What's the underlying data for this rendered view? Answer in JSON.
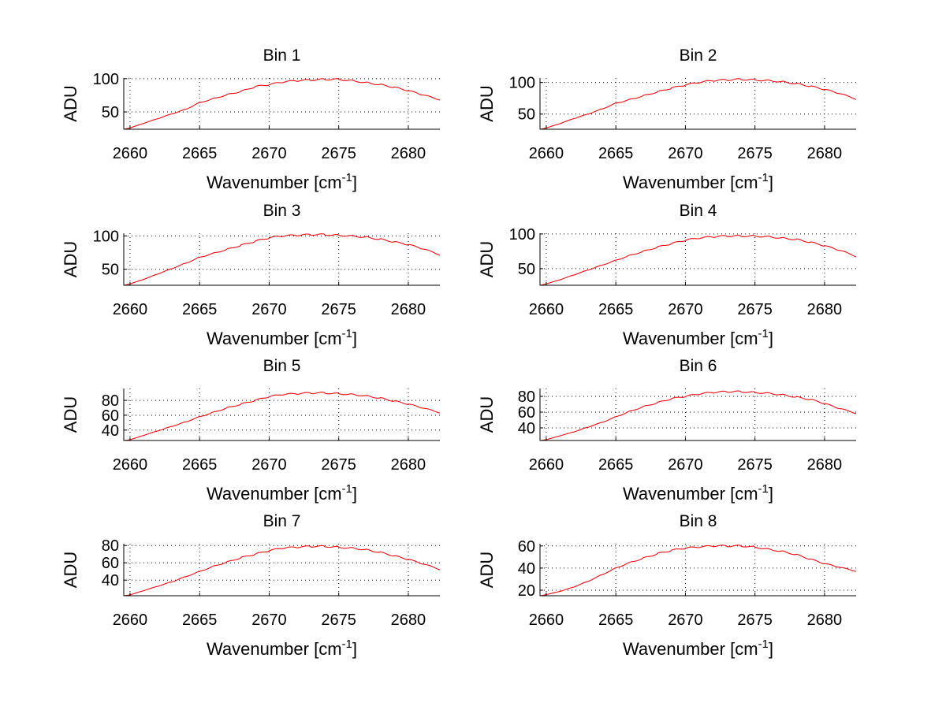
{
  "chart_data": {
    "type": "line",
    "layout": "4x2 subplots",
    "xlabel": {
      "main": "Wavenumber [cm",
      "sup": "-1",
      "close": "]"
    },
    "ylabel": "ADU",
    "xlim": [
      2659.55,
      2682.27
    ],
    "xticks": [
      2660,
      2665,
      2670,
      2675,
      2680
    ],
    "grid": true,
    "line_color": "#ff0000",
    "x": [
      2659.6,
      2660,
      2661,
      2662,
      2663,
      2664,
      2665,
      2666,
      2667,
      2668,
      2669,
      2670,
      2671,
      2672,
      2673,
      2674,
      2675,
      2676,
      2677,
      2678,
      2679,
      2680,
      2681,
      2682,
      2682.27
    ],
    "panels": [
      {
        "title": "Bin 1",
        "ylim": [
          24,
          101
        ],
        "yticks": [
          50,
          100
        ],
        "y": [
          24,
          26,
          33,
          40,
          47,
          54,
          64,
          70,
          76,
          81,
          88,
          91,
          95,
          97,
          98,
          99,
          99,
          97,
          94,
          91,
          87,
          82,
          76,
          70,
          68
        ]
      },
      {
        "title": "Bin 2",
        "ylim": [
          26,
          107
        ],
        "yticks": [
          50,
          100
        ],
        "y": [
          26,
          28,
          35,
          43,
          50,
          58,
          67,
          73,
          79,
          85,
          91,
          96,
          100,
          103,
          104,
          105,
          104,
          103,
          101,
          98,
          94,
          89,
          83,
          76,
          73
        ]
      },
      {
        "title": "Bin 3",
        "ylim": [
          26,
          104
        ],
        "yticks": [
          50,
          100
        ],
        "y": [
          26,
          28,
          35,
          43,
          51,
          59,
          68,
          74,
          80,
          86,
          92,
          97,
          100,
          101,
          102,
          102,
          101,
          100,
          98,
          95,
          91,
          87,
          81,
          74,
          71
        ]
      },
      {
        "title": "Bin 4",
        "ylim": [
          26,
          101
        ],
        "yticks": [
          50,
          100
        ],
        "y": [
          26,
          28,
          34,
          41,
          48,
          55,
          62,
          69,
          75,
          81,
          86,
          91,
          94,
          96,
          97,
          97,
          97,
          96,
          94,
          92,
          88,
          83,
          77,
          70,
          67
        ]
      },
      {
        "title": "Bin 5",
        "ylim": [
          26,
          96
        ],
        "yticks": [
          40,
          60,
          80
        ],
        "y": [
          26,
          27,
          33,
          39,
          45,
          51,
          58,
          64,
          70,
          75,
          80,
          85,
          88,
          89,
          90,
          90,
          89,
          88,
          86,
          83,
          79,
          75,
          70,
          65,
          63
        ]
      },
      {
        "title": "Bin 6",
        "ylim": [
          24,
          90
        ],
        "yticks": [
          40,
          60,
          80
        ],
        "y": [
          24,
          25,
          30,
          35,
          41,
          47,
          54,
          61,
          67,
          72,
          77,
          80,
          83,
          85,
          86,
          86,
          85,
          84,
          82,
          79,
          76,
          71,
          65,
          60,
          58
        ]
      },
      {
        "title": "Bin 7",
        "ylim": [
          22,
          82
        ],
        "yticks": [
          40,
          60,
          80
        ],
        "y": [
          22,
          23,
          28,
          33,
          38,
          44,
          50,
          56,
          61,
          66,
          70,
          74,
          77,
          78,
          79,
          79,
          78,
          77,
          75,
          72,
          68,
          64,
          59,
          54,
          52
        ]
      },
      {
        "title": "Bin 8",
        "ylim": [
          15,
          62
        ],
        "yticks": [
          20,
          40,
          60
        ],
        "y": [
          15,
          16,
          19,
          23,
          28,
          34,
          40,
          45,
          49,
          53,
          56,
          58,
          59,
          60,
          60,
          60,
          59,
          57,
          55,
          52,
          48,
          44,
          41,
          38,
          37
        ]
      }
    ]
  }
}
